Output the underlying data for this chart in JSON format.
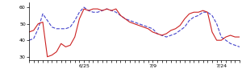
{
  "blue_y": [
    40,
    41,
    47,
    56,
    52,
    48,
    47,
    47,
    47,
    48,
    52,
    57,
    60,
    58,
    57,
    57,
    58,
    59,
    58,
    57,
    55,
    53,
    52,
    51,
    50,
    49,
    48,
    47,
    44,
    43,
    42,
    43,
    44,
    46,
    48,
    52,
    54,
    55,
    57,
    57,
    55,
    50,
    42,
    40,
    38,
    37,
    36
  ],
  "red_y": [
    45,
    46,
    50,
    51,
    30,
    31,
    33,
    38,
    36,
    37,
    42,
    53,
    59,
    58,
    59,
    59,
    58,
    59,
    58,
    59,
    55,
    53,
    51,
    50,
    49,
    48,
    47,
    45,
    44,
    43,
    44,
    46,
    47,
    49,
    53,
    56,
    57,
    57,
    58,
    57,
    45,
    40,
    40,
    42,
    43,
    42,
    42
  ],
  "x_tick_positions": [
    12,
    27,
    42
  ],
  "x_tick_labels": [
    "6/25",
    "7/9",
    "7/24"
  ],
  "ylim": [
    28,
    63
  ],
  "yticks": [
    30,
    40,
    50,
    60
  ],
  "blue_color": "#4444cc",
  "red_color": "#cc2222",
  "bg_color": "#ffffff",
  "linewidth": 0.8
}
